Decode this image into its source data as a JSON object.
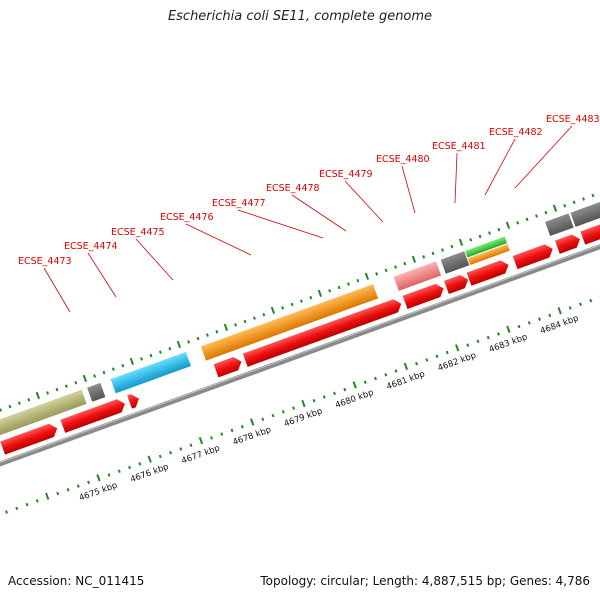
{
  "title": "Escherichia coli SE11, complete genome",
  "footer": {
    "accession": "Accession: NC_011415",
    "summary": "Topology: circular; Length: 4,887,515 bp; Genes: 4,786"
  },
  "colors": {
    "gene_label": "#dd0000",
    "cds_arrow": "#ee1111",
    "backbone": "#808080",
    "ticks": "#228822",
    "olive": "#b8b878",
    "gray": "#6e6e6e",
    "cyan": "#22bbee",
    "orange": "#ff9922",
    "pink": "#ee8888",
    "green": "#44cc44",
    "steelblue": "#4a88bb"
  },
  "scale_labels": [
    "4675 kbp",
    "4676 kbp",
    "4677 kbp",
    "4678 kbp",
    "4679 kbp",
    "4680 kbp",
    "4681 kbp",
    "4682 kbp",
    "4683 kbp",
    "4684 kbp"
  ],
  "gene_labels": [
    "ECSE_4473",
    "ECSE_4474",
    "ECSE_4475",
    "ECSE_4476",
    "ECSE_4477",
    "ECSE_4478",
    "ECSE_4479",
    "ECSE_4480",
    "ECSE_4481",
    "ECSE_4482",
    "ECSE_4483"
  ]
}
